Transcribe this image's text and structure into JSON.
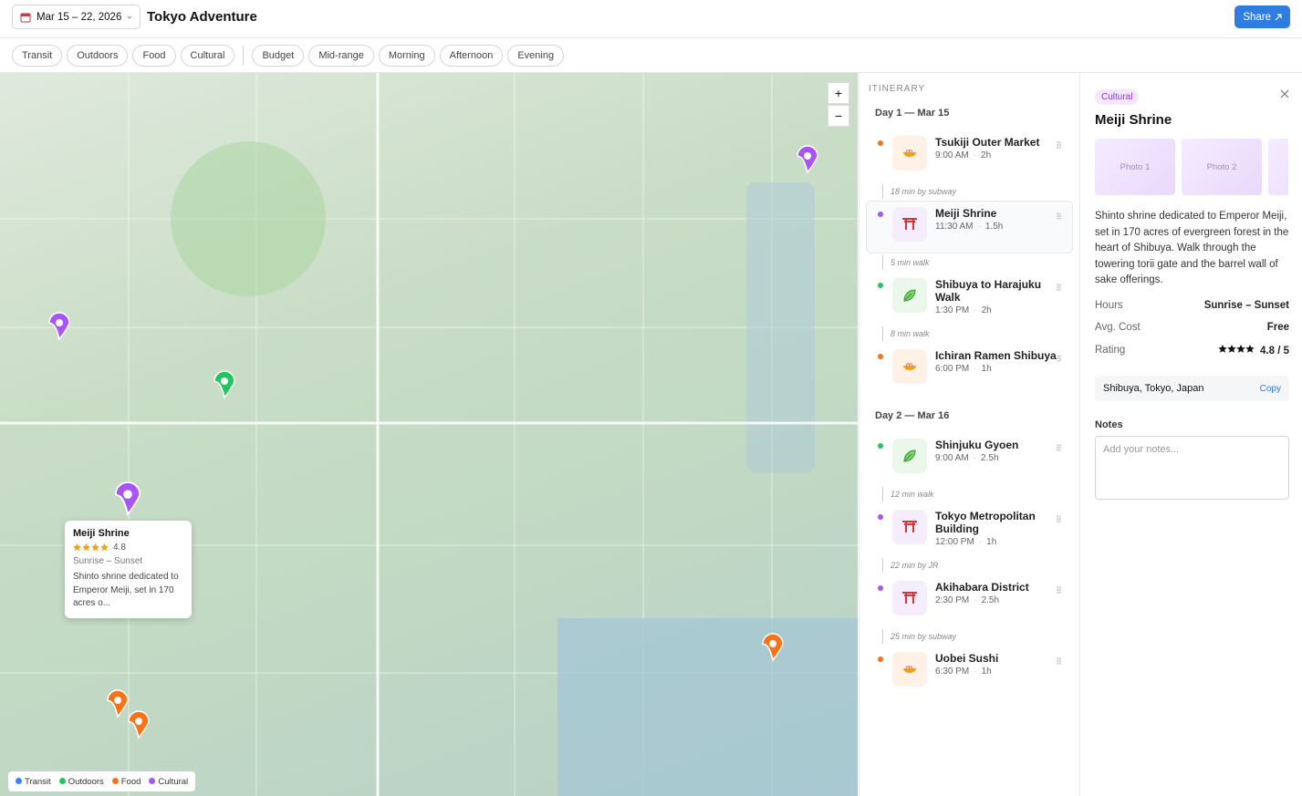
{
  "header": {
    "date_range": "Mar 15 – 22, 2026",
    "title": "Tokyo Adventure",
    "share": "Share"
  },
  "filters": {
    "categories": [
      "Transit",
      "Outdoors",
      "Food",
      "Cultural"
    ],
    "options": [
      "Budget",
      "Mid-range",
      "Morning",
      "Afternoon",
      "Evening"
    ]
  },
  "map": {
    "zoom_in": "+",
    "zoom_out": "−",
    "popup": {
      "title": "Meiji Shrine",
      "rating": "4.8",
      "hours": "Sunrise – Sunset",
      "description": "Shinto shrine dedicated to Emperor Meiji, set in 170 acres o..."
    },
    "legend": [
      {
        "name": "Transit",
        "color": "#3b82f6"
      },
      {
        "name": "Outdoors",
        "color": "#22c55e"
      },
      {
        "name": "Food",
        "color": "#f97316"
      },
      {
        "name": "Cultural",
        "color": "#a855f7"
      }
    ]
  },
  "itinerary": {
    "heading": "ITINERARY",
    "selected": "Meiji Shrine",
    "days": [
      {
        "label": "Day 1 — Mar 15",
        "stops": [
          {
            "name": "Tsukiji Outer Market",
            "time": "9:00 AM",
            "duration": "2h",
            "category": "Food",
            "travel": "18 min by subway"
          },
          {
            "name": "Meiji Shrine",
            "time": "11:30 AM",
            "duration": "1.5h",
            "category": "Cultural",
            "travel": "5 min walk"
          },
          {
            "name": "Shibuya to Harajuku Walk",
            "time": "1:30 PM",
            "duration": "2h",
            "category": "Outdoors",
            "travel": "8 min walk"
          },
          {
            "name": "Ichiran Ramen Shibuya",
            "time": "6:00 PM",
            "duration": "1h",
            "category": "Food"
          }
        ]
      },
      {
        "label": "Day 2 — Mar 16",
        "stops": [
          {
            "name": "Shinjuku Gyoen",
            "time": "9:00 AM",
            "duration": "2.5h",
            "category": "Outdoors",
            "travel": "12 min walk"
          },
          {
            "name": "Tokyo Metropolitan Building",
            "time": "12:00 PM",
            "duration": "1h",
            "category": "Cultural",
            "travel": "22 min by JR"
          },
          {
            "name": "Akihabara District",
            "time": "2:30 PM",
            "duration": "2.5h",
            "category": "Cultural",
            "travel": "25 min by subway"
          },
          {
            "name": "Uobei Sushi",
            "time": "6:30 PM",
            "duration": "1h",
            "category": "Food"
          }
        ]
      }
    ]
  },
  "detail": {
    "tag": "Cultural",
    "title": "Meiji Shrine",
    "photos": [
      "Photo 1",
      "Photo 2"
    ],
    "description": "Shinto shrine dedicated to Emperor Meiji, set in 170 acres of evergreen forest in the heart of Shibuya. Walk through the towering torii gate and the barrel wall of sake offerings.",
    "facts": [
      {
        "label": "Hours",
        "value": "Sunrise – Sunset"
      },
      {
        "label": "Avg. Cost",
        "value": "Free"
      },
      {
        "label": "Rating",
        "value": "4.8 / 5"
      }
    ],
    "address": "Shibuya, Tokyo, Japan",
    "copy": "Copy",
    "notes_label": "Notes",
    "notes_placeholder": "Add your notes..."
  }
}
